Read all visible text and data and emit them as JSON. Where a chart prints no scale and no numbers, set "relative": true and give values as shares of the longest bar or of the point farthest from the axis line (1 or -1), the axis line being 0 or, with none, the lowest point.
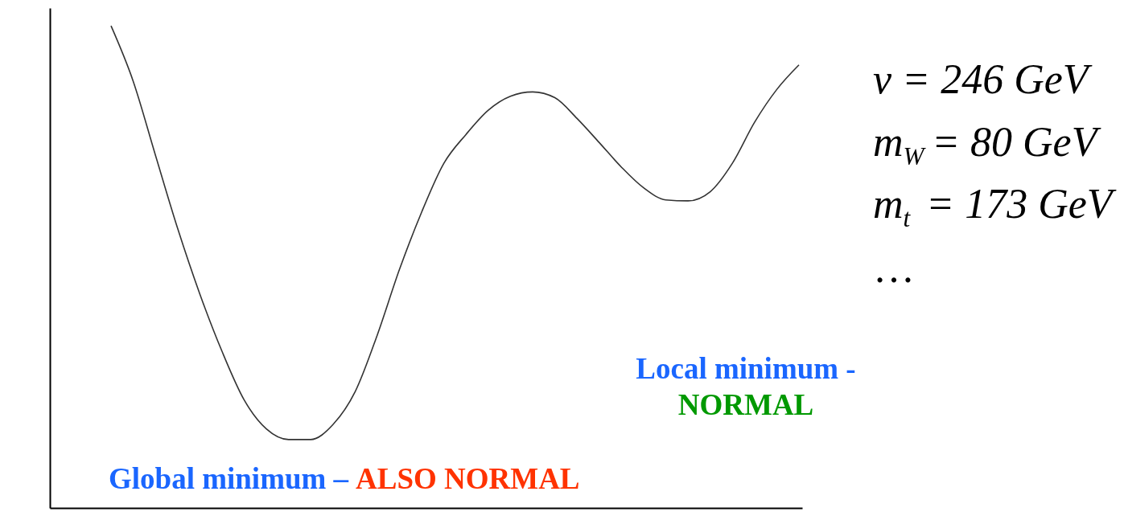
{
  "chart_data": {
    "type": "line",
    "relative": true,
    "categories": [
      null,
      null,
      null,
      null,
      null,
      null,
      null,
      null,
      null,
      null,
      null,
      null,
      null,
      null,
      null,
      null,
      null,
      null,
      null,
      null,
      null,
      null,
      null,
      null,
      null,
      null,
      null,
      null,
      null,
      null,
      null,
      null
    ],
    "series": [
      {
        "color": "#333333",
        "values": [
          1,
          0.885,
          0.732,
          0.58,
          0.444,
          0.325,
          0.224,
          0.164,
          0.142,
          0.142,
          0.173,
          0.241,
          0.359,
          0.495,
          0.614,
          0.715,
          0.775,
          0.825,
          0.854,
          0.863,
          0.851,
          0.808,
          0.758,
          0.707,
          0.664,
          0.639,
          0.637,
          0.656,
          0.715,
          0.8,
          0.868,
          0.919
        ]
      }
    ],
    "annotations": [
      "v = 246 GeV",
      "m$_{W}$ = 80 GeV",
      "m$_{t}$ = 173 GeV",
      "…",
      "Local minimum -",
      "NORMAL",
      "Global minimum –",
      "ALSO NORMAL"
    ],
    "grid": false,
    "marker": "none",
    "line_style": "solid"
  }
}
